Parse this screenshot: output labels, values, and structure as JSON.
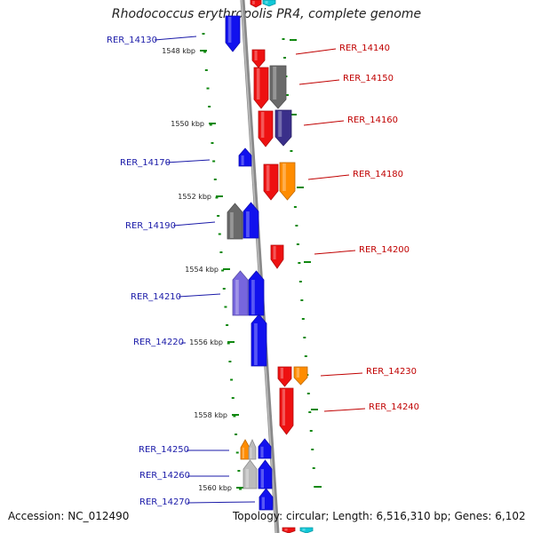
{
  "title": "Rhodococcus erythropolis PR4, complete genome",
  "footer": {
    "accession": "Accession: NC_012490",
    "topology": "Topology: circular; Length: 6,516,310 bp; Genes: 6,102"
  },
  "colors": {
    "backbone": "#8a8a8a",
    "tick": "#118811",
    "left_label": "#1a1aa8",
    "right_label": "#c00000",
    "gene_red": "#ee1111",
    "gene_blue": "#1111ee",
    "gene_gray": "#6a6a6a",
    "gene_orange": "#ff8c00",
    "gene_purple": "#3a2f8a",
    "gene_lavender": "#7766dd",
    "gene_lightgray": "#bbbbbb",
    "gene_cyan": "#11c8d8"
  },
  "kbp_labels": [
    "1548 kbp",
    "1550 kbp",
    "1552 kbp",
    "1554 kbp",
    "1556 kbp",
    "1558 kbp",
    "1560 kbp"
  ],
  "left_genes": [
    "RER_14130",
    "RER_14170",
    "RER_14190",
    "RER_14210",
    "RER_14220",
    "RER_14250",
    "RER_14260",
    "RER_14270"
  ],
  "right_genes": [
    "RER_14140",
    "RER_14150",
    "RER_14160",
    "RER_14180",
    "RER_14200",
    "RER_14230",
    "RER_14240"
  ]
}
